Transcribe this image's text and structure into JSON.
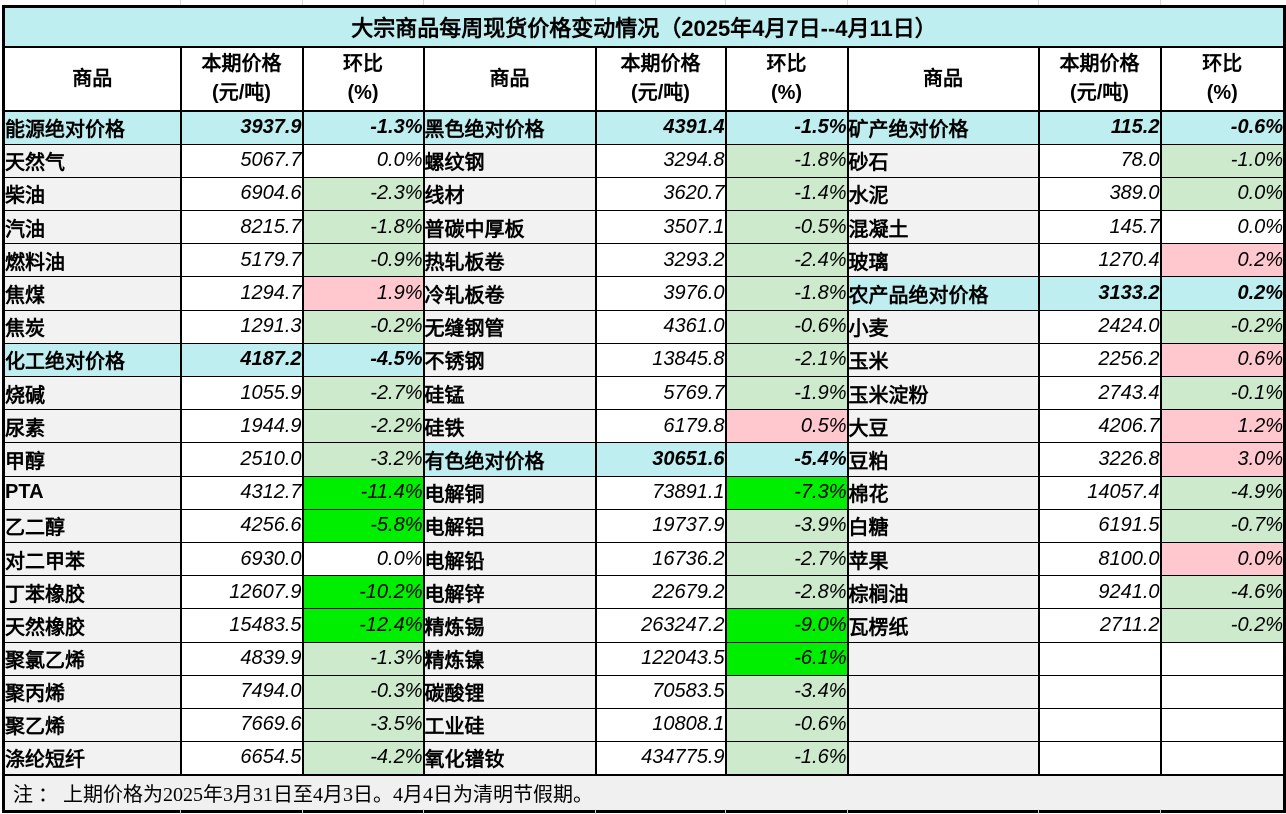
{
  "title": "大宗商品每周现货价格变动情况（2025年4月7日--4月11日）",
  "header": {
    "commodity": "商品",
    "price1": "本期价格",
    "price2": "(元/吨)",
    "pct1": "环比",
    "pct2": "(%)"
  },
  "note": "注 ： 上期价格为2025年3月31日至4月3日。4月4日为清明节假期。",
  "colors": {
    "cyan": "#bfeef0",
    "light_green": "#cdeacd",
    "bright_green": "#00ef00",
    "pink": "#ffc8ce",
    "green_text": "#006100",
    "bright_green_text": "#517d51",
    "red_text": "#9c0006",
    "name_bg": "#f2f2f2"
  },
  "groups": [
    {
      "rows": [
        {
          "name": "能源绝对价格",
          "price": "3937.9",
          "pct": "-1.3%",
          "type": "category",
          "tone": "cat"
        },
        {
          "name": "天然气",
          "price": "5067.7",
          "pct": "0.0%",
          "type": "item",
          "tone": "plain"
        },
        {
          "name": "柴油",
          "price": "6904.6",
          "pct": "-2.3%",
          "type": "item",
          "tone": "green"
        },
        {
          "name": "汽油",
          "price": "8215.7",
          "pct": "-1.8%",
          "type": "item",
          "tone": "green"
        },
        {
          "name": "燃料油",
          "price": "5179.7",
          "pct": "-0.9%",
          "type": "item",
          "tone": "green"
        },
        {
          "name": "焦煤",
          "price": "1294.7",
          "pct": "1.9%",
          "type": "item",
          "tone": "pink"
        },
        {
          "name": "焦炭",
          "price": "1291.3",
          "pct": "-0.2%",
          "type": "item",
          "tone": "green"
        },
        {
          "name": "化工绝对价格",
          "price": "4187.2",
          "pct": "-4.5%",
          "type": "category",
          "tone": "cat"
        },
        {
          "name": "烧碱",
          "price": "1055.9",
          "pct": "-2.7%",
          "type": "item",
          "tone": "green"
        },
        {
          "name": "尿素",
          "price": "1944.9",
          "pct": "-2.2%",
          "type": "item",
          "tone": "green"
        },
        {
          "name": "甲醇",
          "price": "2510.0",
          "pct": "-3.2%",
          "type": "item",
          "tone": "green"
        },
        {
          "name": "PTA",
          "price": "4312.7",
          "pct": "-11.4%",
          "type": "item",
          "tone": "bright"
        },
        {
          "name": "乙二醇",
          "price": "4256.6",
          "pct": "-5.8%",
          "type": "item",
          "tone": "bright"
        },
        {
          "name": "对二甲苯",
          "price": "6930.0",
          "pct": "0.0%",
          "type": "item",
          "tone": "plain"
        },
        {
          "name": "丁苯橡胶",
          "price": "12607.9",
          "pct": "-10.2%",
          "type": "item",
          "tone": "bright"
        },
        {
          "name": "天然橡胶",
          "price": "15483.5",
          "pct": "-12.4%",
          "type": "item",
          "tone": "bright"
        },
        {
          "name": "聚氯乙烯",
          "price": "4839.9",
          "pct": "-1.3%",
          "type": "item",
          "tone": "green"
        },
        {
          "name": "聚丙烯",
          "price": "7494.0",
          "pct": "-0.3%",
          "type": "item",
          "tone": "green"
        },
        {
          "name": "聚乙烯",
          "price": "7669.6",
          "pct": "-3.5%",
          "type": "item",
          "tone": "green"
        },
        {
          "name": "涤纶短纤",
          "price": "6654.5",
          "pct": "-4.2%",
          "type": "item",
          "tone": "green"
        }
      ]
    },
    {
      "rows": [
        {
          "name": "黑色绝对价格",
          "price": "4391.4",
          "pct": "-1.5%",
          "type": "category",
          "tone": "cat"
        },
        {
          "name": "螺纹钢",
          "price": "3294.8",
          "pct": "-1.8%",
          "type": "item",
          "tone": "green"
        },
        {
          "name": "线材",
          "price": "3620.7",
          "pct": "-1.4%",
          "type": "item",
          "tone": "green"
        },
        {
          "name": "普碳中厚板",
          "price": "3507.1",
          "pct": "-0.5%",
          "type": "item",
          "tone": "green"
        },
        {
          "name": "热轧板卷",
          "price": "3293.2",
          "pct": "-2.4%",
          "type": "item",
          "tone": "green"
        },
        {
          "name": "冷轧板卷",
          "price": "3976.0",
          "pct": "-1.8%",
          "type": "item",
          "tone": "green"
        },
        {
          "name": "无缝钢管",
          "price": "4361.0",
          "pct": "-0.6%",
          "type": "item",
          "tone": "green"
        },
        {
          "name": "不锈钢",
          "price": "13845.8",
          "pct": "-2.1%",
          "type": "item",
          "tone": "green"
        },
        {
          "name": "硅锰",
          "price": "5769.7",
          "pct": "-1.9%",
          "type": "item",
          "tone": "green"
        },
        {
          "name": "硅铁",
          "price": "6179.8",
          "pct": "0.5%",
          "type": "item",
          "tone": "pink"
        },
        {
          "name": "有色绝对价格",
          "price": "30651.6",
          "pct": "-5.4%",
          "type": "category",
          "tone": "cat"
        },
        {
          "name": "电解铜",
          "price": "73891.1",
          "pct": "-7.3%",
          "type": "item",
          "tone": "bright"
        },
        {
          "name": "电解铝",
          "price": "19737.9",
          "pct": "-3.9%",
          "type": "item",
          "tone": "green"
        },
        {
          "name": "电解铅",
          "price": "16736.2",
          "pct": "-2.7%",
          "type": "item",
          "tone": "green"
        },
        {
          "name": "电解锌",
          "price": "22679.2",
          "pct": "-2.8%",
          "type": "item",
          "tone": "green"
        },
        {
          "name": "精炼锡",
          "price": "263247.2",
          "pct": "-9.0%",
          "type": "item",
          "tone": "bright"
        },
        {
          "name": "精炼镍",
          "price": "122043.5",
          "pct": "-6.1%",
          "type": "item",
          "tone": "bright"
        },
        {
          "name": "碳酸锂",
          "price": "70583.5",
          "pct": "-3.4%",
          "type": "item",
          "tone": "green"
        },
        {
          "name": "工业硅",
          "price": "10808.1",
          "pct": "-0.6%",
          "type": "item",
          "tone": "green"
        },
        {
          "name": "氧化镨钕",
          "price": "434775.9",
          "pct": "-1.6%",
          "type": "item",
          "tone": "green"
        }
      ]
    },
    {
      "rows": [
        {
          "name": "矿产绝对价格",
          "price": "115.2",
          "pct": "-0.6%",
          "type": "category",
          "tone": "cat"
        },
        {
          "name": "砂石",
          "price": "78.0",
          "pct": "-1.0%",
          "type": "item",
          "tone": "green"
        },
        {
          "name": "水泥",
          "price": "389.0",
          "pct": "0.0%",
          "type": "item",
          "tone": "green"
        },
        {
          "name": "混凝土",
          "price": "145.7",
          "pct": "0.0%",
          "type": "item",
          "tone": "plain"
        },
        {
          "name": "玻璃",
          "price": "1270.4",
          "pct": "0.2%",
          "type": "item",
          "tone": "pink"
        },
        {
          "name": "农产品绝对价格",
          "price": "3133.2",
          "pct": "0.2%",
          "type": "category",
          "tone": "cat"
        },
        {
          "name": "小麦",
          "price": "2424.0",
          "pct": "-0.2%",
          "type": "item",
          "tone": "green"
        },
        {
          "name": "玉米",
          "price": "2256.2",
          "pct": "0.6%",
          "type": "item",
          "tone": "pink"
        },
        {
          "name": "玉米淀粉",
          "price": "2743.4",
          "pct": "-0.1%",
          "type": "item",
          "tone": "green"
        },
        {
          "name": "大豆",
          "price": "4206.7",
          "pct": "1.2%",
          "type": "item",
          "tone": "pink"
        },
        {
          "name": "豆粕",
          "price": "3226.8",
          "pct": "3.0%",
          "type": "item",
          "tone": "pink"
        },
        {
          "name": "棉花",
          "price": "14057.4",
          "pct": "-4.9%",
          "type": "item",
          "tone": "green"
        },
        {
          "name": "白糖",
          "price": "6191.5",
          "pct": "-0.7%",
          "type": "item",
          "tone": "green"
        },
        {
          "name": "苹果",
          "price": "8100.0",
          "pct": "0.0%",
          "type": "item",
          "tone": "pink"
        },
        {
          "name": "棕榈油",
          "price": "9241.0",
          "pct": "-4.6%",
          "type": "item",
          "tone": "green"
        },
        {
          "name": "瓦楞纸",
          "price": "2711.2",
          "pct": "-0.2%",
          "type": "item",
          "tone": "green"
        },
        {
          "name": "",
          "price": "",
          "pct": "",
          "type": "empty",
          "tone": "empty"
        },
        {
          "name": "",
          "price": "",
          "pct": "",
          "type": "empty",
          "tone": "empty"
        },
        {
          "name": "",
          "price": "",
          "pct": "",
          "type": "empty",
          "tone": "empty"
        },
        {
          "name": "",
          "price": "",
          "pct": "",
          "type": "empty",
          "tone": "empty"
        }
      ]
    }
  ]
}
